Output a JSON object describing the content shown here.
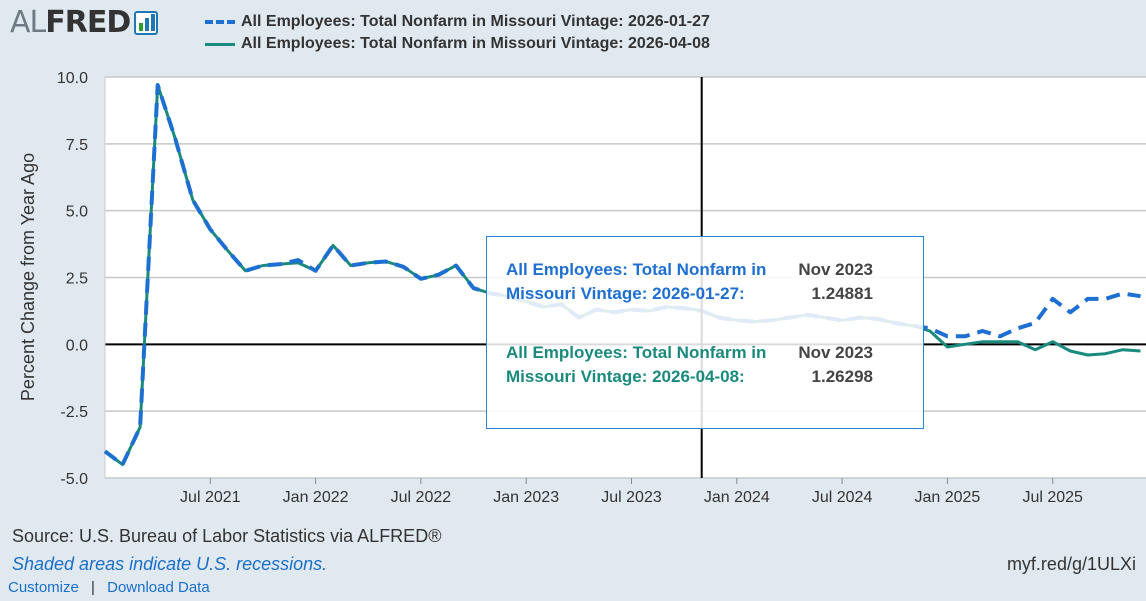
{
  "header": {
    "logo_text_light": "AL",
    "logo_text_bold": "FRED",
    "logo_icon": "bar-chart-icon"
  },
  "colors": {
    "series1": "#1d6fd1",
    "series2": "#1a8a7e",
    "background": "#e1e9f0",
    "plot_background": "#ffffff",
    "grid": "#c8c8c8"
  },
  "tooltip": {
    "date_1": "Nov 2023",
    "value_1": "1.24881",
    "series_1_text": "All Employees: Total Nonfarm in Missouri Vintage: 2026-01-27:",
    "date_2": "Nov 2023",
    "value_2": "1.26298",
    "series_2_text": "All Employees: Total Nonfarm in Missouri Vintage: 2026-04-08:"
  },
  "footer": {
    "source": "Source: U.S. Bureau of Labor Statistics via ALFRED®",
    "recession_note": "Shaded areas indicate U.S. recessions.",
    "short_link": "myf.red/g/1ULXi",
    "customize": "Customize",
    "separator": "|",
    "download": "Download Data"
  },
  "chart_data": {
    "type": "line",
    "title": "",
    "xlabel": "",
    "ylabel": "Percent Change from Year Ago",
    "ylim": [
      -5.0,
      10.0
    ],
    "yticks": [
      "10.0",
      "7.5",
      "5.0",
      "2.5",
      "0.0",
      "-2.5",
      "-5.0"
    ],
    "xticks": [
      "Jul 2021",
      "Jan 2022",
      "Jul 2022",
      "Jan 2023",
      "Jul 2023",
      "Jan 2024",
      "Jul 2024",
      "Jan 2025",
      "Jul 2025"
    ],
    "grid": true,
    "legend_position": "top",
    "crosshair_x": "2023-11",
    "x": [
      "2021-01",
      "2021-02",
      "2021-03",
      "2021-04",
      "2021-05",
      "2021-06",
      "2021-07",
      "2021-08",
      "2021-09",
      "2021-10",
      "2021-11",
      "2021-12",
      "2022-01",
      "2022-02",
      "2022-03",
      "2022-04",
      "2022-05",
      "2022-06",
      "2022-07",
      "2022-08",
      "2022-09",
      "2022-10",
      "2022-11",
      "2022-12",
      "2023-01",
      "2023-02",
      "2023-03",
      "2023-04",
      "2023-05",
      "2023-06",
      "2023-07",
      "2023-08",
      "2023-09",
      "2023-10",
      "2023-11",
      "2023-12",
      "2024-01",
      "2024-02",
      "2024-03",
      "2024-04",
      "2024-05",
      "2024-06",
      "2024-07",
      "2024-08",
      "2024-09",
      "2024-10",
      "2024-11",
      "2024-12",
      "2025-01",
      "2025-02",
      "2025-03",
      "2025-04",
      "2025-05",
      "2025-06",
      "2025-07",
      "2025-08",
      "2025-09",
      "2025-10",
      "2025-11",
      "2025-12"
    ],
    "series": [
      {
        "name": "All Employees: Total Nonfarm in Missouri Vintage: 2026-01-27",
        "style": "dashed",
        "values": [
          -4.0,
          -4.5,
          -3.1,
          9.7,
          7.7,
          5.4,
          4.3,
          3.5,
          2.75,
          2.95,
          3.0,
          3.15,
          2.75,
          3.7,
          2.95,
          3.05,
          3.1,
          2.9,
          2.45,
          2.6,
          2.95,
          2.1,
          1.9,
          1.8,
          1.6,
          1.4,
          1.5,
          1.0,
          1.3,
          1.2,
          1.3,
          1.25,
          1.4,
          1.35,
          1.25,
          1.0,
          0.9,
          0.85,
          0.9,
          1.0,
          1.1,
          1.0,
          0.9,
          1.0,
          0.95,
          0.8,
          0.7,
          0.6,
          0.3,
          0.3,
          0.5,
          0.3,
          0.6,
          0.8,
          1.7,
          1.2,
          1.7,
          1.7,
          1.9,
          1.8
        ]
      },
      {
        "name": "All Employees: Total Nonfarm in Missouri Vintage: 2026-04-08",
        "style": "solid",
        "values": [
          -4.0,
          -4.5,
          -3.1,
          9.7,
          7.7,
          5.4,
          4.3,
          3.5,
          2.75,
          2.95,
          3.0,
          3.05,
          2.75,
          3.7,
          2.95,
          3.05,
          3.1,
          2.9,
          2.45,
          2.6,
          2.95,
          2.1,
          1.9,
          1.8,
          1.6,
          1.4,
          1.5,
          1.0,
          1.3,
          1.2,
          1.3,
          1.25,
          1.4,
          1.35,
          1.26,
          1.0,
          0.9,
          0.85,
          0.9,
          1.0,
          1.1,
          1.0,
          0.9,
          1.0,
          0.95,
          0.8,
          0.7,
          0.5,
          -0.1,
          0.0,
          0.1,
          0.1,
          0.1,
          -0.2,
          0.1,
          -0.25,
          -0.4,
          -0.35,
          -0.2,
          -0.25
        ]
      }
    ]
  }
}
